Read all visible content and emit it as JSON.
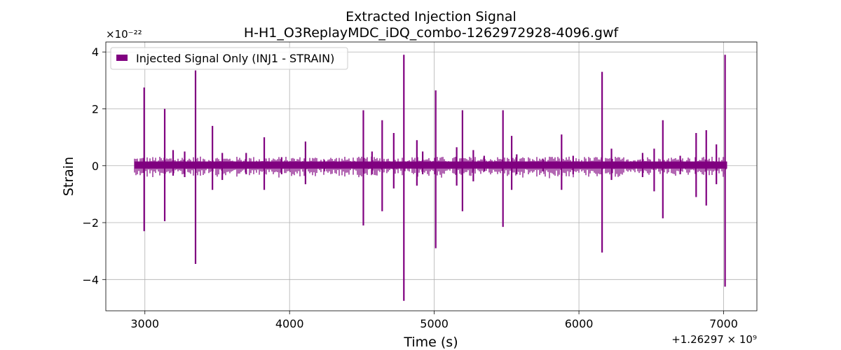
{
  "chart_data": {
    "type": "line",
    "title_line1": "Extracted Injection Signal",
    "title_line2": "H-H1_O3ReplayMDC_iDQ_combo-1262972928-4096.gwf",
    "xlabel": "Time (s)",
    "ylabel": "Strain",
    "y_scale_label": "×10⁻²²",
    "x_offset_label": "+1.26297 × 10⁹",
    "xlim": [
      2730,
      7230
    ],
    "ylim": [
      -5.1,
      4.35
    ],
    "x_ticks": [
      3000,
      4000,
      5000,
      6000,
      7000
    ],
    "x_tick_labels": [
      "3000",
      "4000",
      "5000",
      "6000",
      "7000"
    ],
    "y_ticks": [
      -4,
      -2,
      0,
      2,
      4
    ],
    "y_tick_labels": [
      "−4",
      "−2",
      "0",
      "2",
      "4"
    ],
    "grid": true,
    "legend_position": "top-left",
    "series": [
      {
        "name": "Injected Signal Only (INJ1 - STRAIN)",
        "color": "#800080",
        "background_band": {
          "x_start": 2928,
          "x_end": 7024,
          "y_low": -0.1,
          "y_high": 0.15
        },
        "spikes": [
          {
            "x": 2995,
            "max": 2.75,
            "min": -2.3
          },
          {
            "x": 3137,
            "max": 2.0,
            "min": -1.95
          },
          {
            "x": 3195,
            "max": 0.55,
            "min": -0.35
          },
          {
            "x": 3275,
            "max": 0.5,
            "min": -0.4
          },
          {
            "x": 3350,
            "max": 3.35,
            "min": -3.45
          },
          {
            "x": 3467,
            "max": 1.4,
            "min": -0.85
          },
          {
            "x": 3535,
            "max": 0.45,
            "min": -0.5
          },
          {
            "x": 3700,
            "max": 0.45,
            "min": -0.3
          },
          {
            "x": 3825,
            "max": 1.0,
            "min": -0.85
          },
          {
            "x": 3945,
            "max": 0.3,
            "min": -0.3
          },
          {
            "x": 4110,
            "max": 0.85,
            "min": -0.65
          },
          {
            "x": 4240,
            "max": 0.2,
            "min": -0.2
          },
          {
            "x": 4510,
            "max": 1.95,
            "min": -2.1
          },
          {
            "x": 4570,
            "max": 0.5,
            "min": -0.3
          },
          {
            "x": 4640,
            "max": 1.6,
            "min": -1.6
          },
          {
            "x": 4720,
            "max": 1.15,
            "min": -0.8
          },
          {
            "x": 4790,
            "max": 3.9,
            "min": -4.75
          },
          {
            "x": 4880,
            "max": 0.9,
            "min": -0.7
          },
          {
            "x": 4920,
            "max": 0.5,
            "min": -0.3
          },
          {
            "x": 5010,
            "max": 2.65,
            "min": -2.9
          },
          {
            "x": 5155,
            "max": 0.65,
            "min": -0.7
          },
          {
            "x": 5195,
            "max": 1.95,
            "min": -1.6
          },
          {
            "x": 5270,
            "max": 0.55,
            "min": -0.55
          },
          {
            "x": 5345,
            "max": 0.35,
            "min": -0.2
          },
          {
            "x": 5475,
            "max": 1.95,
            "min": -2.15
          },
          {
            "x": 5535,
            "max": 1.05,
            "min": -0.85
          },
          {
            "x": 5570,
            "max": 0.4,
            "min": -0.3
          },
          {
            "x": 5750,
            "max": 0.25,
            "min": -0.2
          },
          {
            "x": 5880,
            "max": 1.1,
            "min": -0.85
          },
          {
            "x": 5960,
            "max": 0.35,
            "min": -0.3
          },
          {
            "x": 6160,
            "max": 3.3,
            "min": -3.05
          },
          {
            "x": 6225,
            "max": 0.6,
            "min": -0.5
          },
          {
            "x": 6440,
            "max": 0.45,
            "min": -0.4
          },
          {
            "x": 6520,
            "max": 0.6,
            "min": -0.9
          },
          {
            "x": 6580,
            "max": 1.6,
            "min": -1.85
          },
          {
            "x": 6700,
            "max": 0.35,
            "min": -0.3
          },
          {
            "x": 6810,
            "max": 1.15,
            "min": -1.1
          },
          {
            "x": 6880,
            "max": 1.25,
            "min": -1.4
          },
          {
            "x": 6950,
            "max": 0.75,
            "min": -0.65
          },
          {
            "x": 7010,
            "max": 3.9,
            "min": -4.25
          }
        ]
      }
    ]
  }
}
